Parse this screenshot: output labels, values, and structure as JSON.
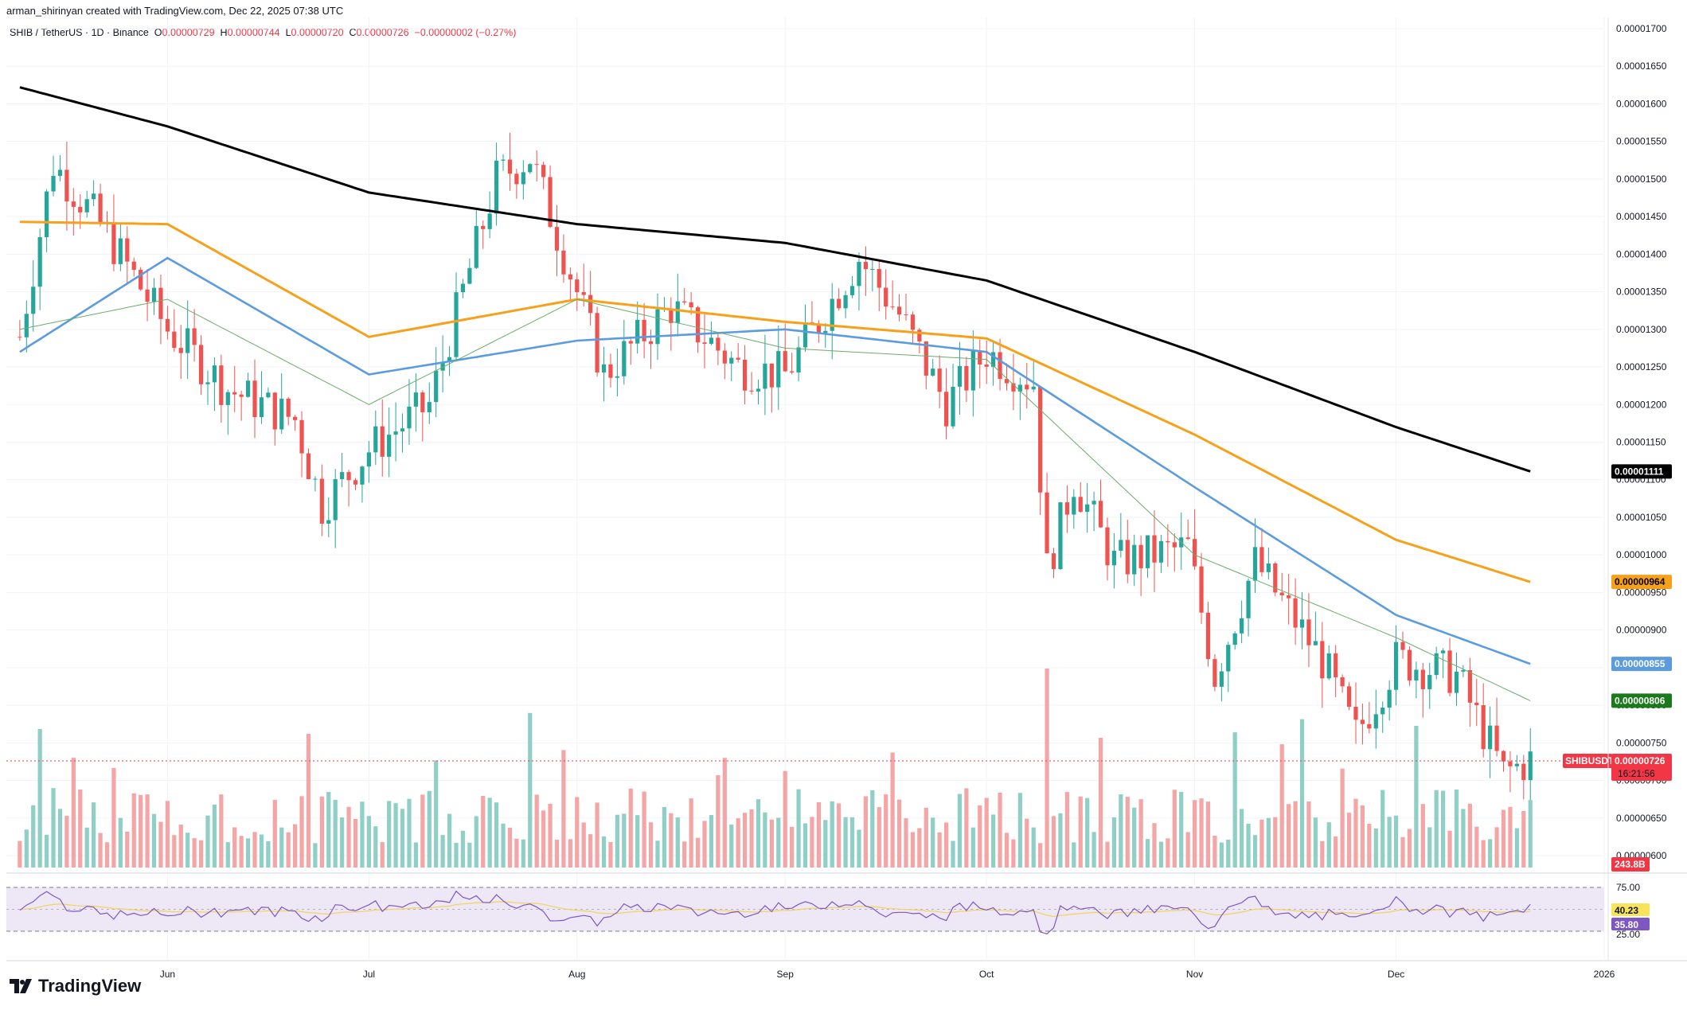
{
  "header": {
    "author_line": "arman_shirinyan created with TradingView.com, Dec 22, 2025 07:38 UTC",
    "symbol": "SHIB / TetherUS · 1D · Binance",
    "o_label": "O",
    "o_value": "0.00000729",
    "h_label": "H",
    "h_value": "0.00000744",
    "l_label": "L",
    "l_value": "0.00000720",
    "c_label": "C",
    "c_value": "0.00000726",
    "change": "−0.00000002 (−0.27%)"
  },
  "footer": {
    "brand": "TradingView"
  },
  "colors": {
    "up": "#26a69a",
    "down": "#ef5350",
    "vol_up": "#8fcfc6",
    "vol_down": "#f4a5a5",
    "ma200": "#000000",
    "ma100": "#f7a11a",
    "ma50": "#5b9be0",
    "ma20": "#6aad6a",
    "rsi": "#7e57c2",
    "rsi_ma": "#f2d35c",
    "rsi_band": "#ede7f6"
  },
  "chart_data": {
    "type": "line",
    "x_ticks": [
      "Jun",
      "Jul",
      "Aug",
      "Sep",
      "Oct",
      "Nov",
      "Dec",
      "2026"
    ],
    "y_ticks": [
      "0.00001700",
      "0.00001650",
      "0.00001600",
      "0.00001550",
      "0.00001500",
      "0.00001450",
      "0.00001400",
      "0.00001350",
      "0.00001300",
      "0.00001250",
      "0.00001200",
      "0.00001150",
      "0.00001100",
      "0.00001050",
      "0.00001000",
      "0.00000950",
      "0.00000900",
      "0.00000850",
      "0.00000800",
      "0.00000750",
      "0.00000700",
      "0.00000650",
      "0.00000600"
    ],
    "ylim": [
      6e-06,
      1.7e-05
    ],
    "series": [
      {
        "name": "",
        "x": [
          "2025-05-10",
          "2025-06-01",
          "2025-07-01",
          "2025-08-01",
          "2025-09-01",
          "2025-10-01",
          "2025-11-01",
          "2025-12-01",
          "2025-12-21"
        ],
        "values": [
          1.622e-05,
          1.57e-05,
          1.482e-05,
          1.44e-05,
          1.415e-05,
          1.365e-05,
          1.27e-05,
          1.17e-05,
          1.111e-05
        ],
        "color": "#000000"
      },
      {
        "name": "",
        "x": [
          "2025-05-10",
          "2025-06-01",
          "2025-07-01",
          "2025-08-01",
          "2025-09-01",
          "2025-10-01",
          "2025-11-01",
          "2025-12-01",
          "2025-12-21"
        ],
        "values": [
          1.443e-05,
          1.44e-05,
          1.29e-05,
          1.34e-05,
          1.31e-05,
          1.288e-05,
          1.16e-05,
          1.02e-05,
          9.64e-06
        ],
        "color": "#f7a11a"
      },
      {
        "name": "",
        "x": [
          "2025-05-10",
          "2025-06-01",
          "2025-07-01",
          "2025-08-01",
          "2025-09-01",
          "2025-10-01",
          "2025-11-01",
          "2025-12-01",
          "2025-12-21"
        ],
        "values": [
          1.27e-05,
          1.395e-05,
          1.24e-05,
          1.285e-05,
          1.3e-05,
          1.27e-05,
          1.09e-05,
          9.2e-06,
          8.55e-06
        ],
        "color": "#5b9be0"
      },
      {
        "name": "",
        "x": [
          "2025-05-10",
          "2025-06-01",
          "2025-07-01",
          "2025-08-01",
          "2025-09-01",
          "2025-10-01",
          "2025-11-01",
          "2025-12-01",
          "2025-12-21"
        ],
        "values": [
          1.3e-05,
          1.34e-05,
          1.2e-05,
          1.34e-05,
          1.275e-05,
          1.26e-05,
          1e-05,
          8.9e-06,
          8.06e-06
        ],
        "color": "#6aad6a"
      }
    ],
    "candles_summary": {
      "close_path_x": [
        "2025-05-10",
        "2025-05-15",
        "2025-05-22",
        "2025-06-01",
        "2025-06-10",
        "2025-06-20",
        "2025-06-24",
        "2025-07-01",
        "2025-07-10",
        "2025-07-20",
        "2025-07-25",
        "2025-08-01",
        "2025-08-05",
        "2025-08-15",
        "2025-08-25",
        "2025-09-01",
        "2025-09-12",
        "2025-09-18",
        "2025-09-25",
        "2025-10-01",
        "2025-10-08",
        "2025-10-10",
        "2025-10-14",
        "2025-10-20",
        "2025-10-31",
        "2025-11-04",
        "2025-11-10",
        "2025-11-20",
        "2025-11-25",
        "2025-12-01",
        "2025-12-10",
        "2025-12-17",
        "2025-12-21"
      ],
      "close_path_y": [
        1.29e-05,
        1.52e-05,
        1.44e-05,
        1.3e-05,
        1.22e-05,
        1.18e-05,
        1.065e-05,
        1.14e-05,
        1.2e-05,
        1.5e-05,
        1.53e-05,
        1.35e-05,
        1.24e-05,
        1.33e-05,
        1.25e-05,
        1.24e-05,
        1.395e-05,
        1.32e-05,
        1.2e-05,
        1.27e-05,
        1.23e-05,
        9.8e-06,
        1.1e-05,
        9.9e-06,
        1.01e-05,
        8.4e-06,
        9.9e-06,
        8.6e-06,
        7.6e-06,
        8.6e-06,
        8.4e-06,
        7.1e-06,
        7.26e-06
      ]
    },
    "price_tags": {
      "ma200": "0.00001111",
      "ma100": "0.00000964",
      "ma50": "0.00000855",
      "ma20": "0.00000806",
      "last_symbol": "SHIBUSDT",
      "last_price": "0.00000726",
      "countdown": "16:21:56",
      "volume": "243.8B"
    },
    "rsi": {
      "levels": [
        "75.00",
        "25.00"
      ],
      "rsi_value": "35.80",
      "rsi_ma_value": "40.23"
    }
  }
}
